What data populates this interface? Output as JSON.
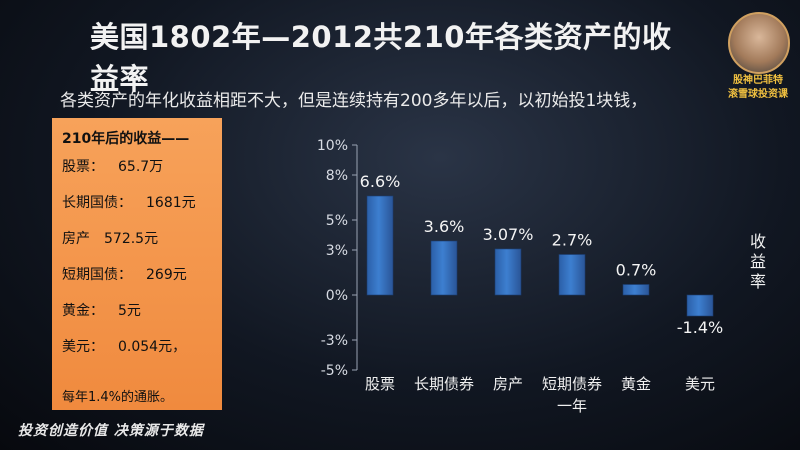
{
  "header": {
    "title": "美国1802年—2012共210年各类资产的收益率",
    "subtitle": "各类资产的年化收益相距不大，但是连续持有200多年以后，以初始投1块钱，",
    "brand_line1": "股神巴菲特",
    "brand_line2": "滚雪球投资课"
  },
  "panel": {
    "heading": "210年后的收益——",
    "rows": [
      {
        "label": "股票：",
        "value": "65.7万"
      },
      {
        "label": "长期国债：",
        "value": "1681元"
      },
      {
        "label": "房产",
        "value": "572.5元"
      },
      {
        "label": "短期国债：",
        "value": "269元"
      },
      {
        "label": "黄金：",
        "value": "5元"
      },
      {
        "label": "美元：",
        "value": "0.054元，"
      }
    ],
    "footnote": "每年1.4%的通胀。"
  },
  "slogan": "投资创造价值  决策源于数据",
  "colors": {
    "bar": "#3d7fd0",
    "panel": "#f29450"
  },
  "chart_data": {
    "type": "bar",
    "categories": [
      "股票",
      "长期债券",
      "房产",
      "短期债券一年",
      "黄金",
      "美元"
    ],
    "category_lines": [
      [
        "股票"
      ],
      [
        "长期债券"
      ],
      [
        "房产"
      ],
      [
        "短期债券",
        "一年"
      ],
      [
        "黄金"
      ],
      [
        "美元"
      ]
    ],
    "values": [
      6.6,
      3.6,
      3.07,
      2.7,
      0.7,
      -1.4
    ],
    "data_labels": [
      "6.6%",
      "3.6%",
      "3.07%",
      "2.7%",
      "0.7%",
      "-1.4%"
    ],
    "ylabel": "收益率",
    "ylim": [
      -5,
      10
    ],
    "ticks": [
      10,
      8,
      5,
      3,
      0,
      -3,
      -5
    ],
    "tick_labels": [
      "10%",
      "8%",
      "5%",
      "3%",
      "0%",
      "-3%",
      "-5%"
    ],
    "grid": false,
    "legend": "none"
  }
}
